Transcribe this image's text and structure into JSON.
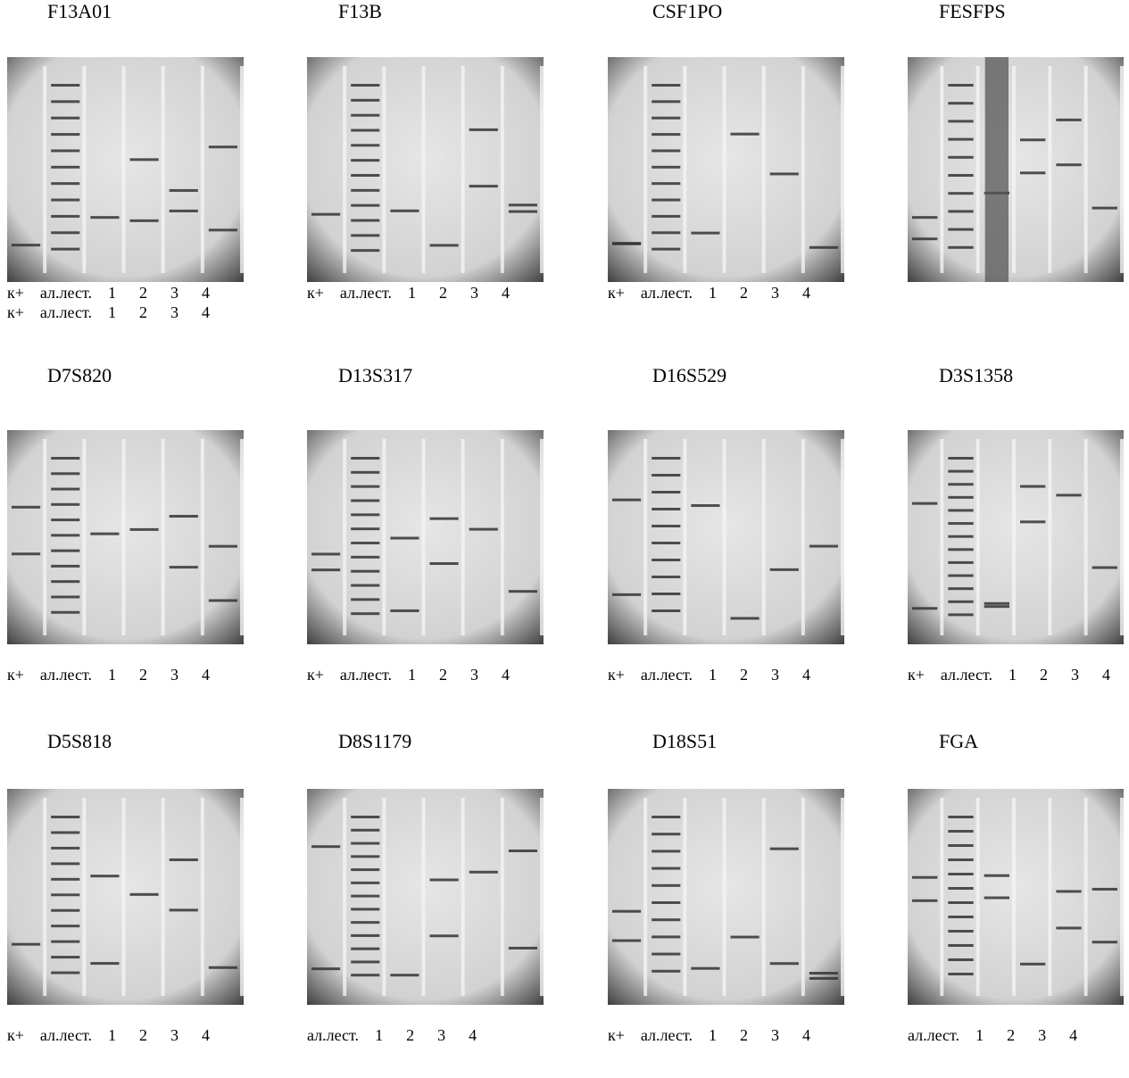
{
  "panels": [
    {
      "title": "F13A01",
      "lane_labels": [
        [
          "к+",
          "ал.лест.",
          "1",
          "2",
          "3",
          "4"
        ],
        [
          "к+",
          "ал.лест.",
          "1",
          "2",
          "3",
          "4"
        ]
      ]
    },
    {
      "title": "F13B",
      "lane_labels": [
        [
          "к+",
          "ал.лест.",
          "1",
          "2",
          "3",
          "4"
        ]
      ]
    },
    {
      "title": "CSF1PO",
      "lane_labels": [
        [
          "к+",
          "ал.лест.",
          "1",
          "2",
          "3",
          "4"
        ]
      ]
    },
    {
      "title": "FESFPS",
      "lane_labels": []
    },
    {
      "title": "D7S820",
      "lane_labels": [
        [
          "к+",
          "ал.лест.",
          "1",
          "2",
          "3",
          "4"
        ]
      ]
    },
    {
      "title": "D13S317",
      "lane_labels": [
        [
          "к+",
          "ал.лест.",
          "1",
          "2",
          "3",
          "4"
        ]
      ]
    },
    {
      "title": "D16S529",
      "lane_labels": [
        [
          "к+",
          "ал.лест.",
          "1",
          "2",
          "3",
          "4"
        ]
      ]
    },
    {
      "title": "D3S1358",
      "lane_labels": [
        [
          "к+",
          "ал.лест.",
          "1",
          "2",
          "3",
          "4"
        ]
      ]
    },
    {
      "title": "D5S818",
      "lane_labels": [
        [
          "к+",
          "ал.лест.",
          "1",
          "2",
          "3",
          "4"
        ]
      ]
    },
    {
      "title": "D8S1179",
      "lane_labels": [
        [
          "ал.лест.",
          "1",
          "2",
          "3",
          "4"
        ]
      ]
    },
    {
      "title": "D18S51",
      "lane_labels": [
        [
          "к+",
          "ал.лест.",
          "1",
          "2",
          "3",
          "4"
        ]
      ]
    },
    {
      "title": "FGA",
      "lane_labels": [
        [
          "ал.лест.",
          "1",
          "2",
          "3",
          "4"
        ]
      ]
    }
  ]
}
